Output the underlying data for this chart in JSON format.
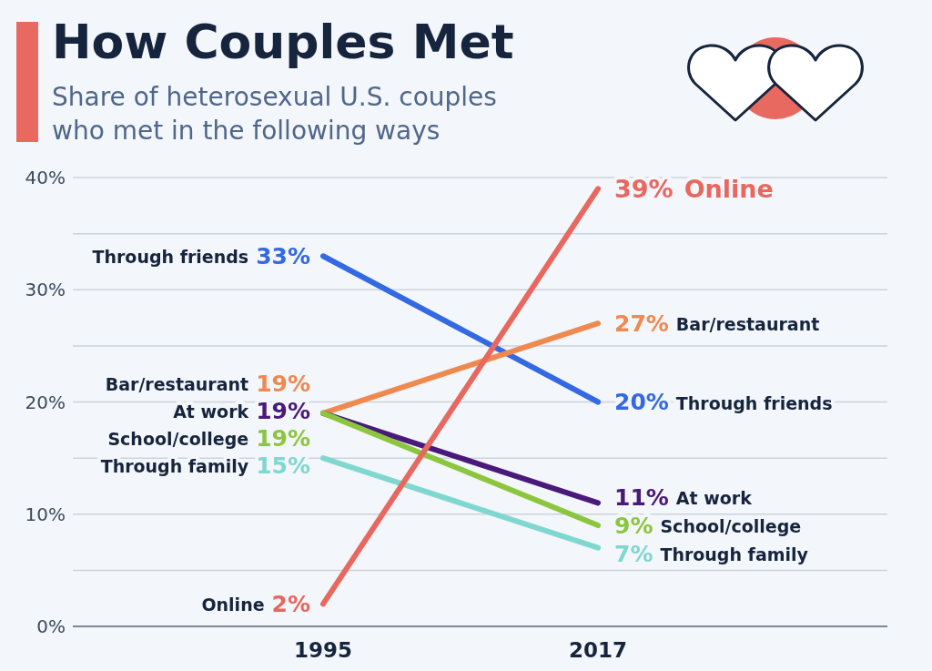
{
  "chart_data": {
    "type": "line",
    "title": "How Couples Met",
    "subtitle": "Share of heterosexual U.S. couples who met in the following ways",
    "categories": [
      "1995",
      "2017"
    ],
    "series": [
      {
        "name": "Through friends",
        "color": "#3369e3",
        "values": [
          33,
          20
        ],
        "value_labels": [
          "33%",
          "20%"
        ]
      },
      {
        "name": "Bar/restaurant",
        "color": "#f0894f",
        "values": [
          19,
          27
        ],
        "value_labels": [
          "19%",
          "27%"
        ]
      },
      {
        "name": "At work",
        "color": "#4a1a7a",
        "values": [
          19,
          11
        ],
        "value_labels": [
          "19%",
          "11%"
        ]
      },
      {
        "name": "School/college",
        "color": "#8cc63e",
        "values": [
          19,
          9
        ],
        "value_labels": [
          "19%",
          "9%"
        ]
      },
      {
        "name": "Through family",
        "color": "#7fd8cf",
        "values": [
          15,
          7
        ],
        "value_labels": [
          "15%",
          "7%"
        ]
      },
      {
        "name": "Online",
        "color": "#e8675f",
        "values": [
          2,
          39
        ],
        "value_labels": [
          "2%",
          "39%"
        ]
      }
    ],
    "ylim": [
      0,
      40
    ],
    "yticks": [
      {
        "value": 0,
        "label": "0%"
      },
      {
        "value": 5,
        "label": null
      },
      {
        "value": 10,
        "label": "10%"
      },
      {
        "value": 15,
        "label": null
      },
      {
        "value": 20,
        "label": "20%"
      },
      {
        "value": 25,
        "label": null
      },
      {
        "value": 30,
        "label": "30%"
      },
      {
        "value": 35,
        "label": null
      },
      {
        "value": 40,
        "label": "40%"
      }
    ],
    "grid": "y"
  }
}
